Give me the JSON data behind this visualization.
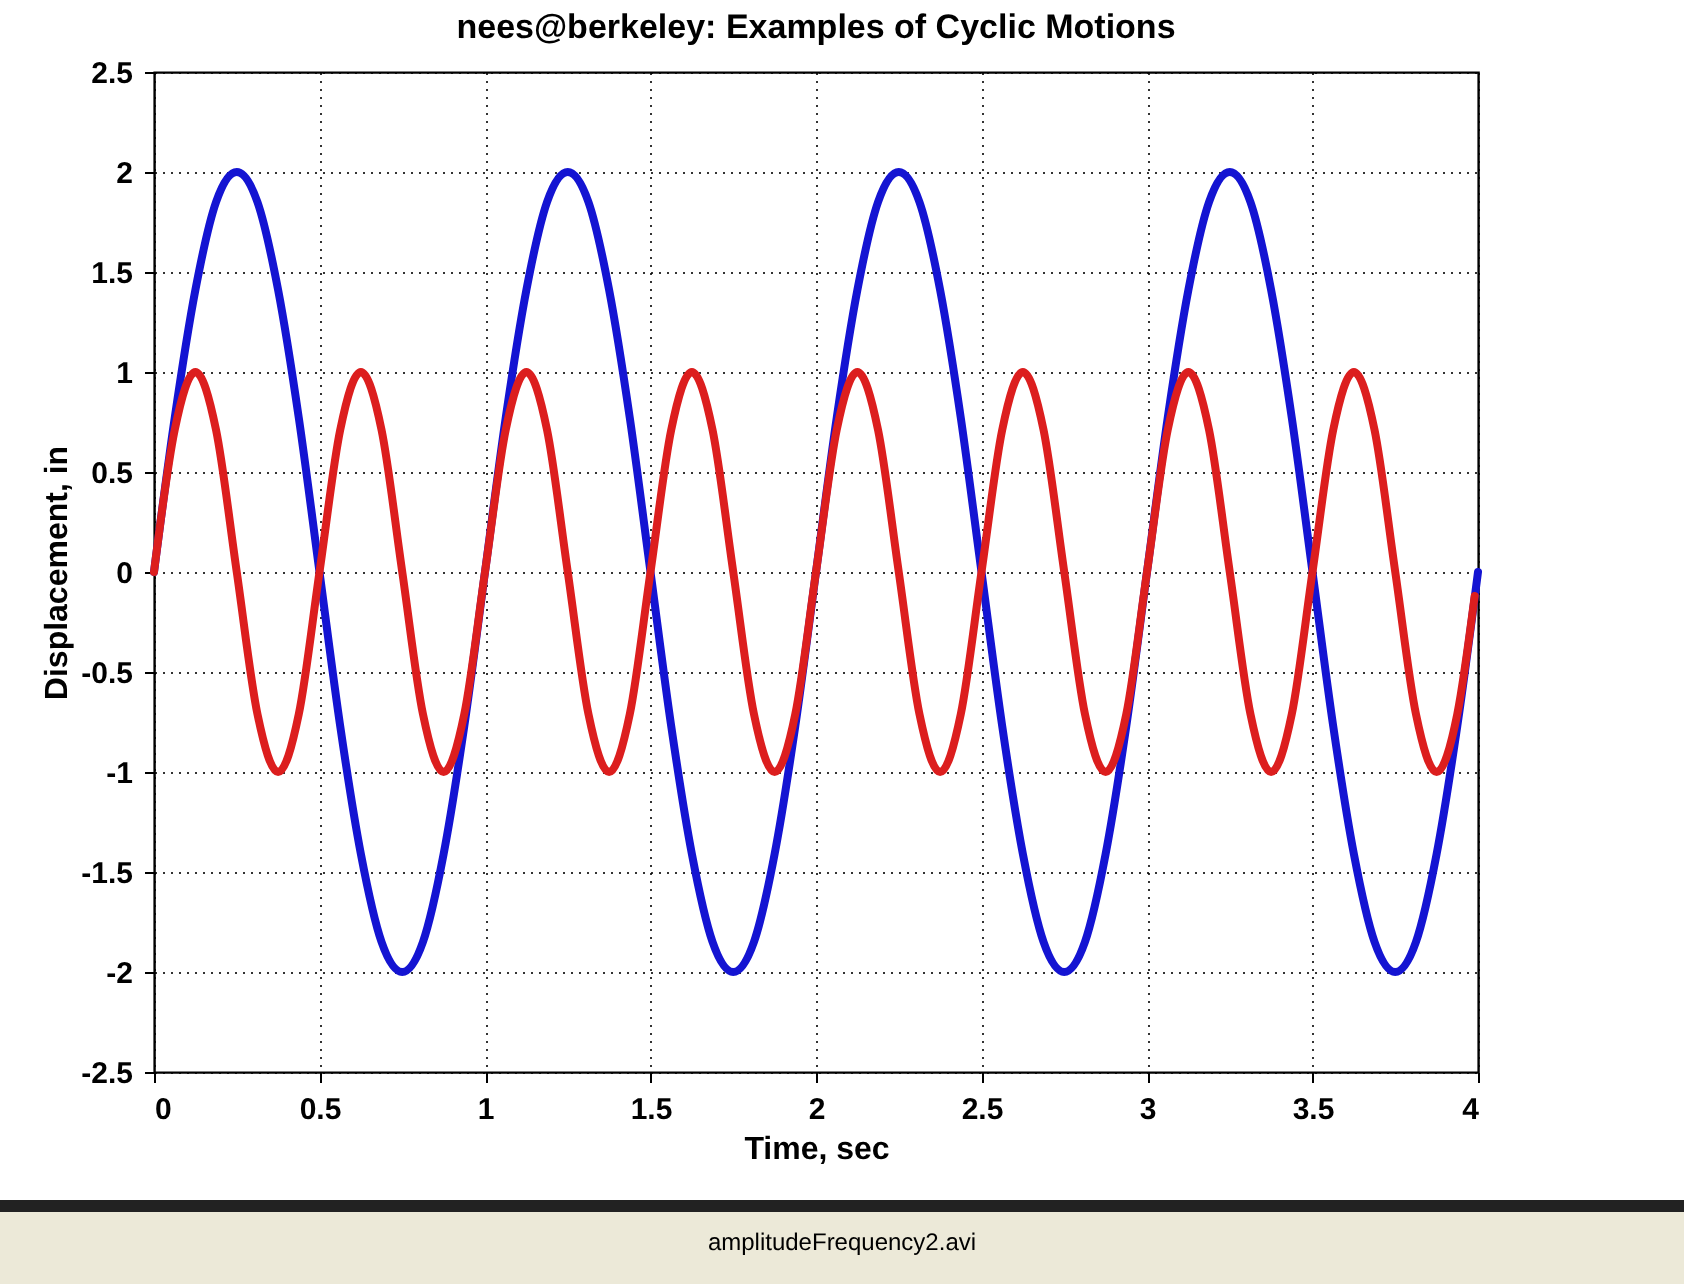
{
  "chart_data": {
    "type": "line",
    "title": "nees@berkeley: Examples of Cyclic Motions",
    "xlabel": "Time, sec",
    "ylabel": "Displacement, in",
    "x": [
      0,
      0.0625,
      0.125,
      0.1875,
      0.25,
      0.3125,
      0.375,
      0.4375,
      0.5,
      0.5625,
      0.625,
      0.6875,
      0.75,
      0.8125,
      0.875,
      0.9375,
      1,
      1.0625,
      1.125,
      1.1875,
      1.25,
      1.3125,
      1.375,
      1.4375,
      1.5,
      1.5625,
      1.625,
      1.6875,
      1.75,
      1.8125,
      1.875,
      1.9375,
      2,
      2.0625,
      2.125,
      2.1875,
      2.25,
      2.3125,
      2.375,
      2.4375,
      2.5,
      2.5625,
      2.625,
      2.6875,
      2.75,
      2.8125,
      2.875,
      2.9375,
      3,
      3.0625,
      3.125,
      3.1875,
      3.25,
      3.3125,
      3.375,
      3.4375,
      3.5,
      3.5625,
      3.625,
      3.6875,
      3.75,
      3.8125,
      3.875,
      3.9375,
      4
    ],
    "series": [
      {
        "color": "#1414d2",
        "values": [
          0,
          0.77,
          1.41,
          1.85,
          2,
          1.85,
          1.41,
          0.77,
          0,
          -0.77,
          -1.41,
          -1.85,
          -2,
          -1.85,
          -1.41,
          -0.77,
          0,
          0.77,
          1.41,
          1.85,
          2,
          1.85,
          1.41,
          0.77,
          0,
          -0.77,
          -1.41,
          -1.85,
          -2,
          -1.85,
          -1.41,
          -0.77,
          0,
          0.77,
          1.41,
          1.85,
          2,
          1.85,
          1.41,
          0.77,
          0,
          -0.77,
          -1.41,
          -1.85,
          -2,
          -1.85,
          -1.41,
          -0.77,
          0,
          0.77,
          1.41,
          1.85,
          2,
          1.85,
          1.41,
          0.77,
          0,
          -0.77,
          -1.41,
          -1.85,
          -2,
          -1.85,
          -1.41,
          -0.77,
          0
        ]
      },
      {
        "color": "#dc1e1e",
        "x": [
          0,
          0.0625,
          0.125,
          0.1875,
          0.25,
          0.3125,
          0.375,
          0.4375,
          0.5,
          0.5625,
          0.625,
          0.6875,
          0.75,
          0.8125,
          0.875,
          0.9375,
          1,
          1.0625,
          1.125,
          1.1875,
          1.25,
          1.3125,
          1.375,
          1.4375,
          1.5,
          1.5625,
          1.625,
          1.6875,
          1.75,
          1.8125,
          1.875,
          1.9375,
          2,
          2.0625,
          2.125,
          2.1875,
          2.25,
          2.3125,
          2.375,
          2.4375,
          2.5,
          2.5625,
          2.625,
          2.6875,
          2.75,
          2.8125,
          2.875,
          2.9375,
          3,
          3.0625,
          3.125,
          3.1875,
          3.25,
          3.3125,
          3.375,
          3.4375,
          3.5,
          3.5625,
          3.625,
          3.6875,
          3.75,
          3.8125,
          3.875,
          3.9375,
          3.99
        ],
        "values": [
          0,
          0.71,
          1,
          0.71,
          0,
          -0.71,
          -1,
          -0.71,
          0,
          0.71,
          1,
          0.71,
          0,
          -0.71,
          -1,
          -0.71,
          0,
          0.71,
          1,
          0.71,
          0,
          -0.71,
          -1,
          -0.71,
          0,
          0.71,
          1,
          0.71,
          0,
          -0.71,
          -1,
          -0.71,
          0,
          0.71,
          1,
          0.71,
          0,
          -0.71,
          -1,
          -0.71,
          0,
          0.71,
          1,
          0.71,
          0,
          -0.71,
          -1,
          -0.71,
          0,
          0.71,
          1,
          0.71,
          0,
          -0.71,
          -1,
          -0.71,
          0,
          0.71,
          1,
          0.71,
          0,
          -0.71,
          -1,
          -0.71,
          -0.12
        ]
      }
    ],
    "xlim": [
      0,
      4
    ],
    "xticks": [
      0,
      0.5,
      1,
      1.5,
      2,
      2.5,
      3,
      3.5,
      4
    ],
    "ylim": [
      -2.5,
      2.5
    ],
    "yticks": [
      -2.5,
      -2,
      -1.5,
      -1,
      -0.5,
      0,
      0.5,
      1,
      1.5,
      2,
      2.5
    ],
    "grid": true,
    "line_style": "solid",
    "annotations": [
      "amplitudeFrequency2.avi"
    ]
  }
}
